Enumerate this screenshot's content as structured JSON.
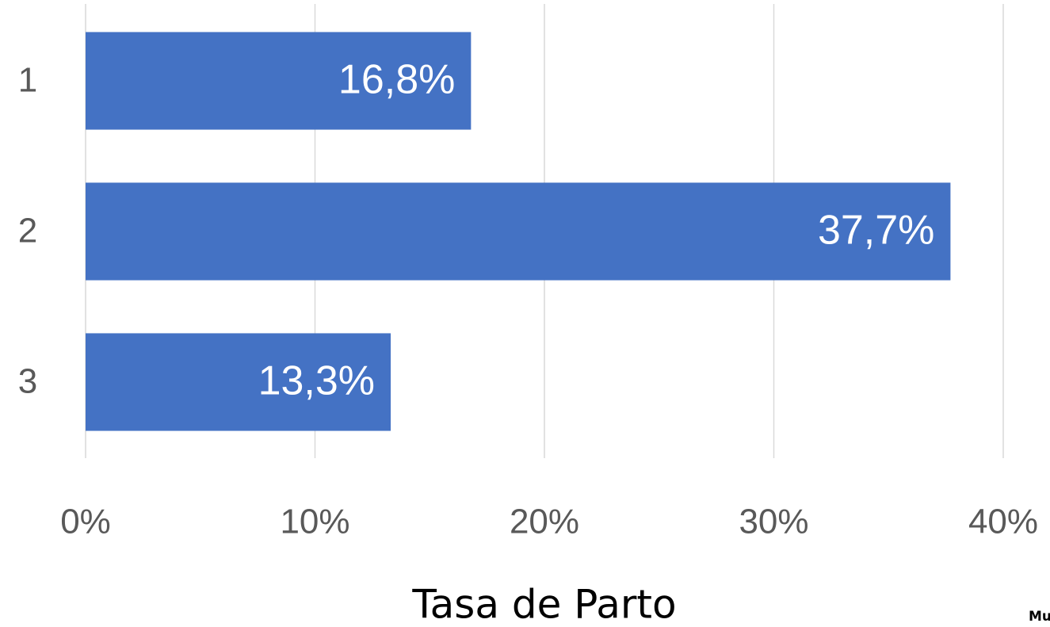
{
  "chart_data": {
    "type": "bar",
    "orientation": "horizontal",
    "categories": [
      "1",
      "2",
      "3"
    ],
    "values": [
      16.8,
      37.7,
      13.3
    ],
    "value_labels": [
      "16,8%",
      "37,7%",
      "13,3%"
    ],
    "color": "#4472c4",
    "xlim": [
      0,
      40
    ],
    "xticks": [
      {
        "value": 0,
        "label": "0%"
      },
      {
        "value": 10,
        "label": "10%"
      },
      {
        "value": 20,
        "label": "20%"
      },
      {
        "value": 30,
        "label": "30%"
      },
      {
        "value": 40,
        "label": "40%"
      }
    ],
    "grid": true,
    "x_label": "Tasa de Parto",
    "annotation": "Mu"
  }
}
